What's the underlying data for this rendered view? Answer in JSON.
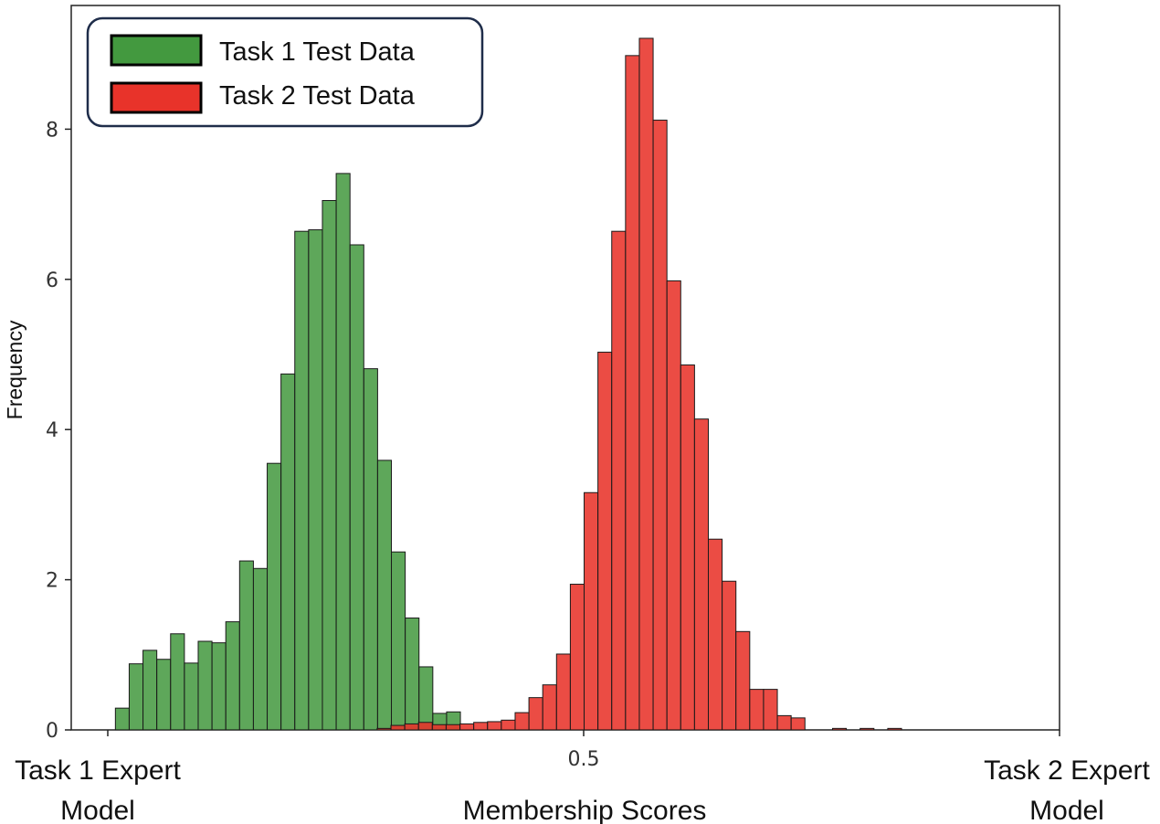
{
  "chart_data": {
    "type": "bar",
    "subtype": "overlapping-histogram",
    "ylabel": "Frequency",
    "xlabel": "Membership Scores",
    "x_end_labels": {
      "left": [
        "Task 1 Expert",
        "Model"
      ],
      "right": [
        "Task 2 Expert",
        "Model"
      ]
    },
    "xlim": [
      0,
      1
    ],
    "x_ticks": [
      0.5
    ],
    "x_tick_labels": [
      "0.5"
    ],
    "ylim": [
      0,
      9.5
    ],
    "y_ticks": [
      0,
      2,
      4,
      6,
      8
    ],
    "y_tick_labels": [
      "0",
      "2",
      "4",
      "6",
      "8"
    ],
    "grid": false,
    "legend_position": "top-left",
    "bin_width": 0.0145,
    "series": [
      {
        "name": "Task 1 Test Data",
        "color": "#43993f",
        "bin_start": 0.008,
        "values": [
          0.29,
          0.88,
          1.06,
          0.94,
          1.28,
          0.89,
          1.18,
          1.16,
          1.44,
          2.25,
          2.15,
          3.55,
          4.74,
          6.64,
          6.66,
          7.05,
          7.41,
          6.46,
          4.81,
          3.59,
          2.37,
          1.49,
          0.84,
          0.22,
          0.24
        ]
      },
      {
        "name": "Task 2 Test Data",
        "color": "#e8332a",
        "bin_start": 0.283,
        "values": [
          0.02,
          0.06,
          0.08,
          0.1,
          0.07,
          0.07,
          0.08,
          0.1,
          0.11,
          0.13,
          0.23,
          0.43,
          0.6,
          1.01,
          1.94,
          3.16,
          5.03,
          6.64,
          8.98,
          9.21,
          8.12,
          5.98,
          4.86,
          4.14,
          2.54,
          1.98,
          1.31,
          0.54,
          0.54,
          0.19,
          0.16,
          0.0,
          0.0,
          0.02,
          0.0,
          0.02,
          0.0,
          0.02
        ]
      }
    ]
  }
}
